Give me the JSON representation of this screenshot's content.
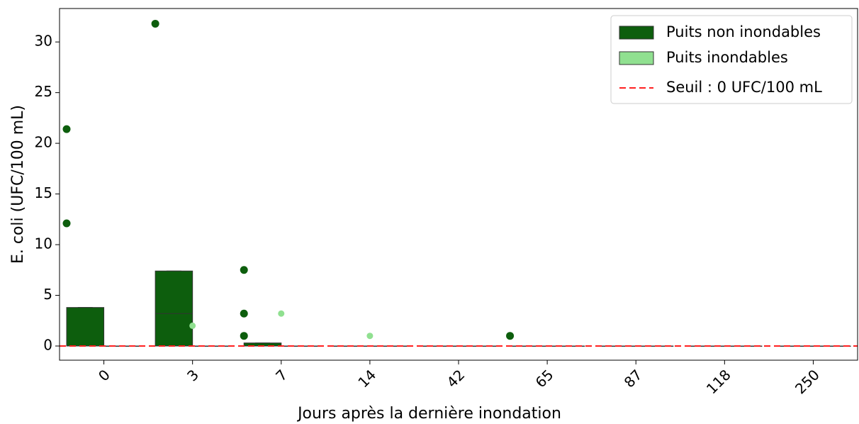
{
  "chart_data": {
    "type": "box",
    "xlabel": "Jours après la dernière inondation",
    "ylabel": "E. coli (UFC/100 mL)",
    "categories": [
      "0",
      "3",
      "7",
      "14",
      "42",
      "65",
      "87",
      "118",
      "250"
    ],
    "ylim": [
      -1.4,
      33.3
    ],
    "yticks": [
      0,
      5,
      10,
      15,
      20,
      25,
      30
    ],
    "legend": "upper right",
    "threshold": {
      "value": 0,
      "label": "Seuil : 0 UFC/100 mL",
      "color": "#ff2020"
    },
    "series": [
      {
        "name": "Puits non inondables",
        "color": "#0d5e0d",
        "boxes": [
          {
            "q1": 0,
            "median": 0,
            "q3": 3.8,
            "whislo": 0,
            "whishi": 3.8,
            "fliers": [
              12.1,
              21.4
            ]
          },
          {
            "q1": 0,
            "median": 3.2,
            "q3": 7.4,
            "whislo": 0,
            "whishi": 7.4,
            "fliers": [
              31.8
            ]
          },
          {
            "q1": 0,
            "median": 0,
            "q3": 0.3,
            "whislo": 0,
            "whishi": 0.3,
            "fliers": [
              1.0,
              3.2,
              7.5
            ]
          },
          {
            "q1": 0,
            "median": 0,
            "q3": 0,
            "whislo": 0,
            "whishi": 0,
            "fliers": []
          },
          {
            "q1": 0,
            "median": 0,
            "q3": 0,
            "whislo": 0,
            "whishi": 0,
            "fliers": []
          },
          {
            "q1": 0,
            "median": 0,
            "q3": 0,
            "whislo": 0,
            "whishi": 0,
            "fliers": [
              1.0
            ]
          },
          {
            "q1": 0,
            "median": 0,
            "q3": 0,
            "whislo": 0,
            "whishi": 0,
            "fliers": []
          },
          {
            "q1": 0,
            "median": 0,
            "q3": 0,
            "whislo": 0,
            "whishi": 0,
            "fliers": []
          },
          {
            "q1": 0,
            "median": 0,
            "q3": 0,
            "whislo": 0,
            "whishi": 0,
            "fliers": []
          }
        ]
      },
      {
        "name": "Puits inondables",
        "color": "#90e090",
        "boxes": [
          {
            "q1": 0,
            "median": 0,
            "q3": 0,
            "whislo": 0,
            "whishi": 0,
            "fliers": []
          },
          {
            "q1": 0,
            "median": 0,
            "q3": 0,
            "whislo": 0,
            "whishi": 0,
            "fliers": [
              2.0
            ]
          },
          {
            "q1": 0,
            "median": 0,
            "q3": 0,
            "whislo": 0,
            "whishi": 0,
            "fliers": [
              3.2
            ]
          },
          {
            "q1": 0,
            "median": 0,
            "q3": 0,
            "whislo": 0,
            "whishi": 0,
            "fliers": [
              1.0
            ]
          },
          {
            "q1": 0,
            "median": 0,
            "q3": 0,
            "whislo": 0,
            "whishi": 0,
            "fliers": []
          },
          {
            "q1": 0,
            "median": 0,
            "q3": 0,
            "whislo": 0,
            "whishi": 0,
            "fliers": []
          },
          {
            "q1": 0,
            "median": 0,
            "q3": 0,
            "whislo": 0,
            "whishi": 0,
            "fliers": []
          },
          {
            "q1": 0,
            "median": 0,
            "q3": 0,
            "whislo": 0,
            "whishi": 0,
            "fliers": []
          },
          {
            "q1": 0,
            "median": 0,
            "q3": 0,
            "whislo": 0,
            "whishi": 0,
            "fliers": []
          }
        ]
      }
    ]
  }
}
